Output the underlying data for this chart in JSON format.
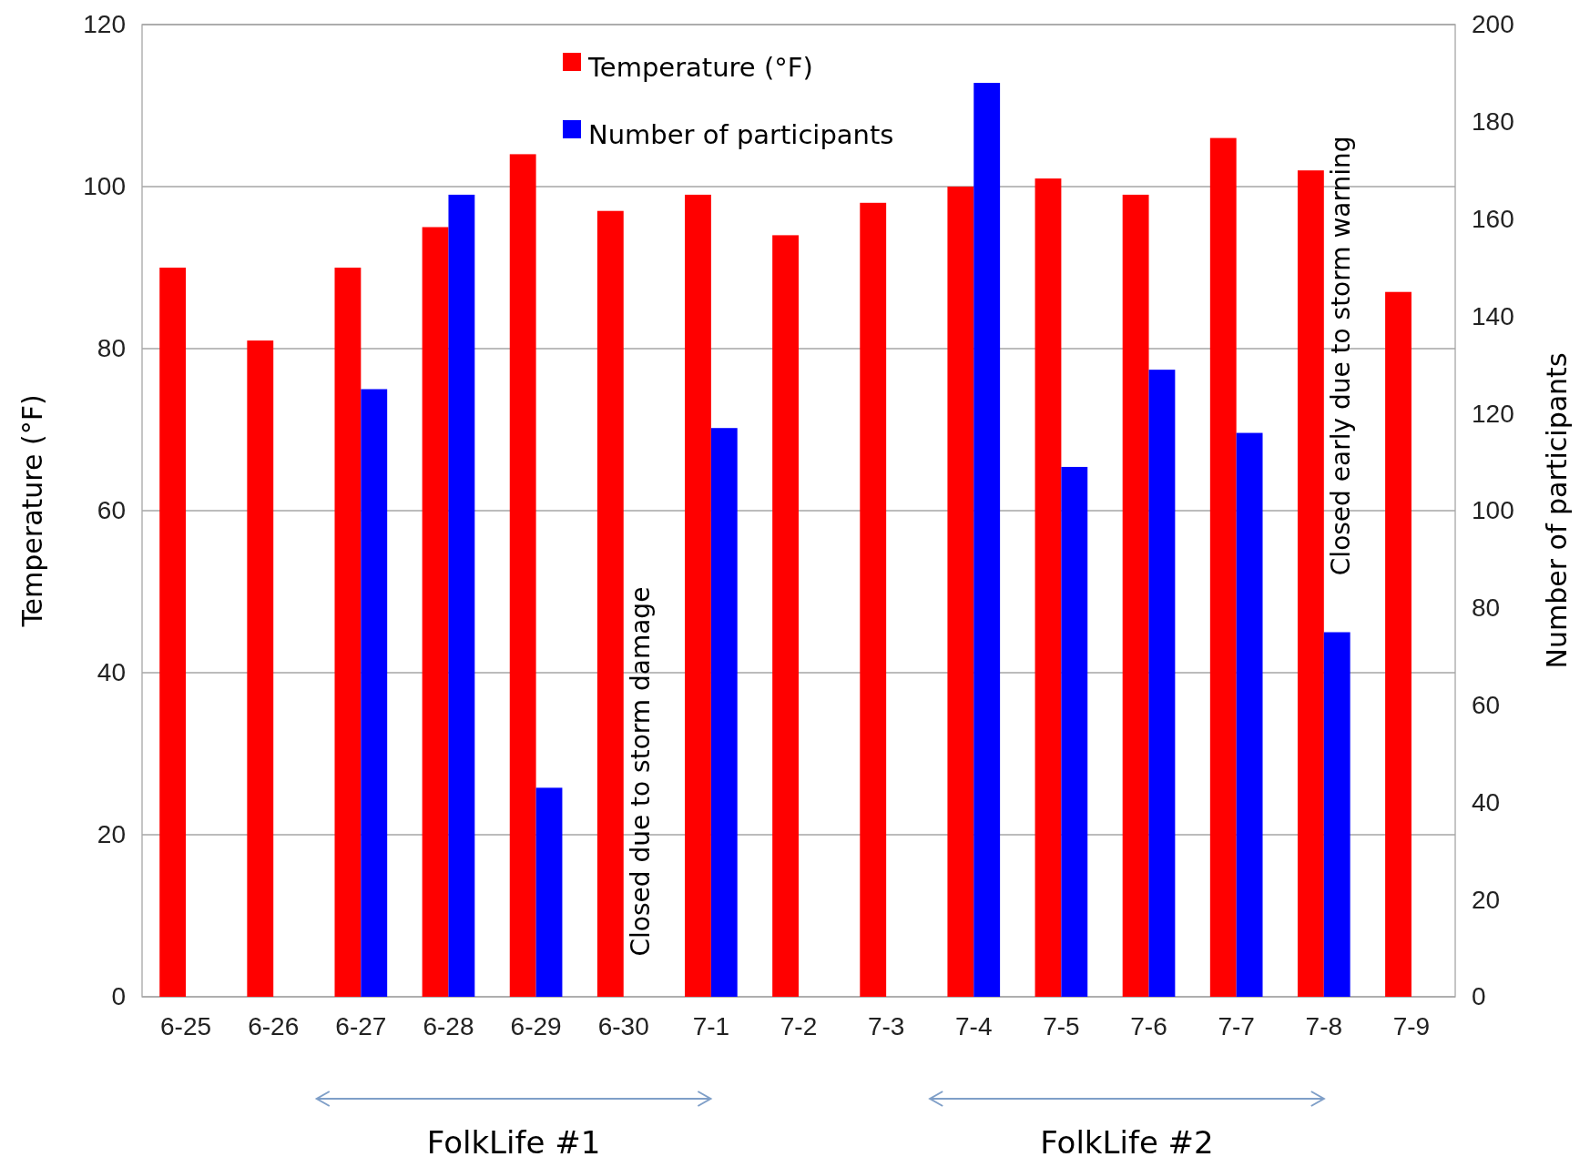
{
  "chart_data": {
    "type": "bar",
    "categories": [
      "6-25",
      "6-26",
      "6-27",
      "6-28",
      "6-29",
      "6-30",
      "7-1",
      "7-2",
      "7-3",
      "7-4",
      "7-5",
      "7-6",
      "7-7",
      "7-8",
      "7-9"
    ],
    "series": [
      {
        "name": "Temperature (°F)",
        "color": "#ff0000",
        "values": [
          90,
          81,
          90,
          95,
          104,
          97,
          99,
          94,
          98,
          100,
          101,
          99,
          106,
          102,
          87
        ]
      },
      {
        "name": "Number of participants",
        "color": "#0000ff",
        "axis": "y2",
        "values": [
          null,
          null,
          125,
          165,
          43,
          null,
          117,
          null,
          null,
          188,
          109,
          129,
          116,
          75,
          null
        ]
      }
    ],
    "ylabel": "Temperature  (°F)",
    "y2label": "Number of participants",
    "ylim": [
      0,
      120
    ],
    "yticks": [
      0,
      20,
      40,
      60,
      80,
      100,
      120
    ],
    "y2lim": [
      0,
      200
    ],
    "y2ticks": [
      0,
      20,
      40,
      60,
      80,
      100,
      120,
      140,
      160,
      180,
      200
    ],
    "grid": "y",
    "legend": "top",
    "annotations": [
      {
        "text": "Closed due to storm damage",
        "x": "6-30",
        "y": 5
      },
      {
        "text": "Closed early due to storm warning",
        "x": "7-8",
        "y": 52
      },
      "FolkLife #1",
      "FolkLife #2"
    ]
  }
}
